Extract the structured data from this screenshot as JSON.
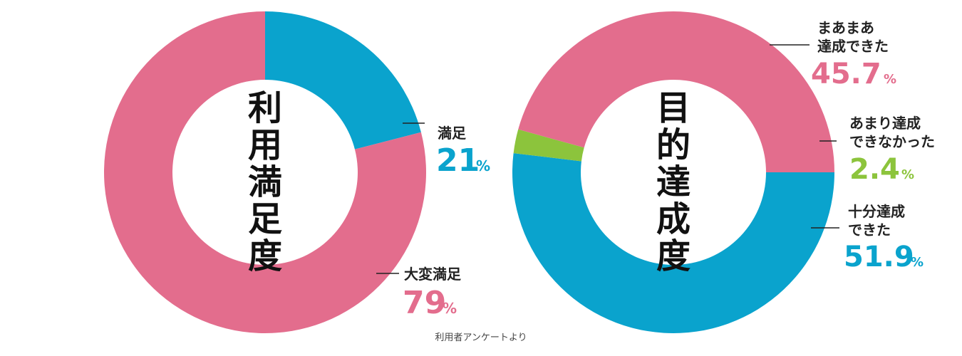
{
  "chart_data": [
    {
      "type": "pie",
      "title": "利用満足度",
      "slices": [
        {
          "name": "満足",
          "value": 21,
          "value_text": "21",
          "unit": "%",
          "color": "#0aa3cd"
        },
        {
          "name": "大変満足",
          "value": 79,
          "value_text": "79",
          "unit": "%",
          "color": "#e36d8d"
        }
      ]
    },
    {
      "type": "pie",
      "title": "目的達成度",
      "slices": [
        {
          "name": "十分達成できた",
          "value": 51.9,
          "value_text": "51.9",
          "unit": "%",
          "color": "#0aa3cd"
        },
        {
          "name": "あまり達成できなかった",
          "value": 2.4,
          "value_text": "2.4",
          "unit": "%",
          "color": "#8cc43c"
        },
        {
          "name": "まあまあ達成できた",
          "value": 45.7,
          "value_text": "45.7",
          "unit": "%",
          "color": "#e36d8d"
        }
      ]
    }
  ],
  "labels": {
    "c1_satisfied": [
      "満足"
    ],
    "c1_very_satisfied": [
      "大変満足"
    ],
    "c2_somewhat": [
      "まあまあ",
      "達成できた"
    ],
    "c2_not": [
      "あまり達成",
      "できなかった"
    ],
    "c2_fully": [
      "十分達成",
      "できた"
    ]
  },
  "source": "利用者アンケートより"
}
